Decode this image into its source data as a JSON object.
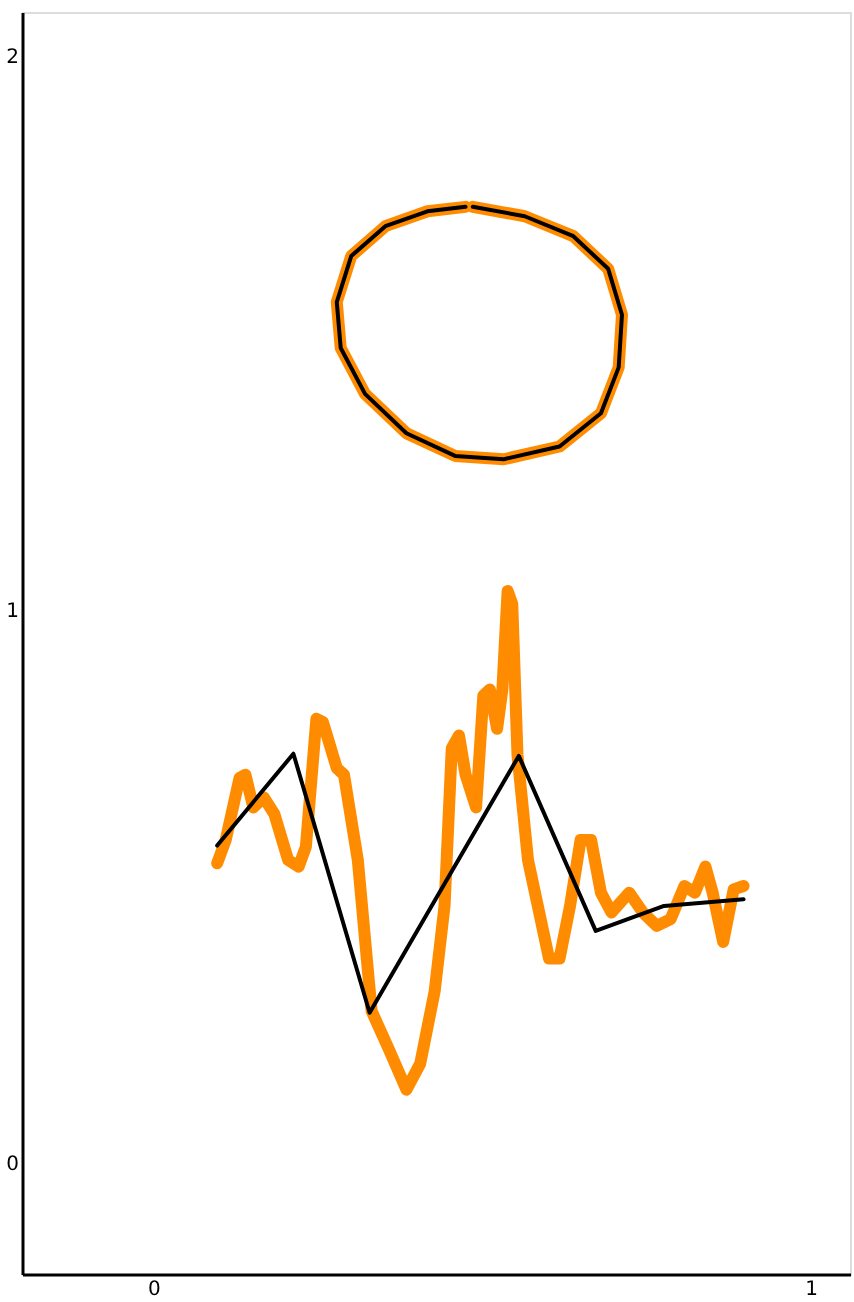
{
  "chart_data": {
    "type": "line",
    "xlim": [
      -0.2,
      1.06
    ],
    "ylim": [
      -0.2,
      2.08
    ],
    "xticks": [
      0,
      1
    ],
    "yticks": [
      0,
      1,
      2
    ],
    "grid": false,
    "marker": "none",
    "line_style": "solid",
    "series": [
      {
        "color": "#ff8c00",
        "x": [
          0.486,
          0.565,
          0.639,
          0.692,
          0.713,
          0.708,
          0.681,
          0.618,
          0.533,
          0.459,
          0.385,
          0.322,
          0.285,
          0.279,
          0.301,
          0.353,
          0.417,
          0.475
        ],
        "values": [
          1.728,
          1.711,
          1.675,
          1.616,
          1.533,
          1.438,
          1.355,
          1.295,
          1.272,
          1.278,
          1.319,
          1.39,
          1.473,
          1.556,
          1.639,
          1.693,
          1.72,
          1.728
        ]
      },
      {
        "color": "#000000",
        "x": [
          0.486,
          0.565,
          0.639,
          0.692,
          0.713,
          0.708,
          0.681,
          0.618,
          0.533,
          0.459,
          0.385,
          0.322,
          0.285,
          0.279,
          0.301,
          0.353,
          0.417,
          0.475
        ],
        "values": [
          1.728,
          1.711,
          1.675,
          1.616,
          1.533,
          1.438,
          1.355,
          1.295,
          1.272,
          1.278,
          1.319,
          1.39,
          1.473,
          1.556,
          1.639,
          1.693,
          1.72,
          1.728
        ]
      },
      {
        "color": "#ff8c00",
        "x": [
          0.097,
          0.11,
          0.131,
          0.14,
          0.152,
          0.168,
          0.184,
          0.205,
          0.221,
          0.232,
          0.248,
          0.258,
          0.279,
          0.29,
          0.311,
          0.332,
          0.359,
          0.385,
          0.406,
          0.428,
          0.443,
          0.454,
          0.465,
          0.475,
          0.491,
          0.502,
          0.512,
          0.523,
          0.531,
          0.539,
          0.546,
          0.554,
          0.57,
          0.602,
          0.618,
          0.634,
          0.65,
          0.666,
          0.681,
          0.697,
          0.724,
          0.745,
          0.766,
          0.787,
          0.808,
          0.824,
          0.84,
          0.851,
          0.867,
          0.883,
          0.898
        ],
        "values": [
          0.542,
          0.584,
          0.696,
          0.702,
          0.643,
          0.661,
          0.631,
          0.548,
          0.536,
          0.572,
          0.803,
          0.797,
          0.714,
          0.702,
          0.548,
          0.275,
          0.204,
          0.133,
          0.18,
          0.311,
          0.465,
          0.75,
          0.773,
          0.702,
          0.643,
          0.845,
          0.856,
          0.785,
          0.856,
          1.034,
          1.011,
          0.738,
          0.548,
          0.37,
          0.37,
          0.465,
          0.584,
          0.584,
          0.489,
          0.453,
          0.489,
          0.453,
          0.429,
          0.441,
          0.501,
          0.489,
          0.536,
          0.489,
          0.4,
          0.495,
          0.501
        ]
      },
      {
        "color": "#000000",
        "x": [
          0.097,
          0.213,
          0.329,
          0.556,
          0.673,
          0.777,
          0.898
        ],
        "values": [
          0.574,
          0.74,
          0.272,
          0.736,
          0.42,
          0.465,
          0.477
        ]
      }
    ]
  }
}
